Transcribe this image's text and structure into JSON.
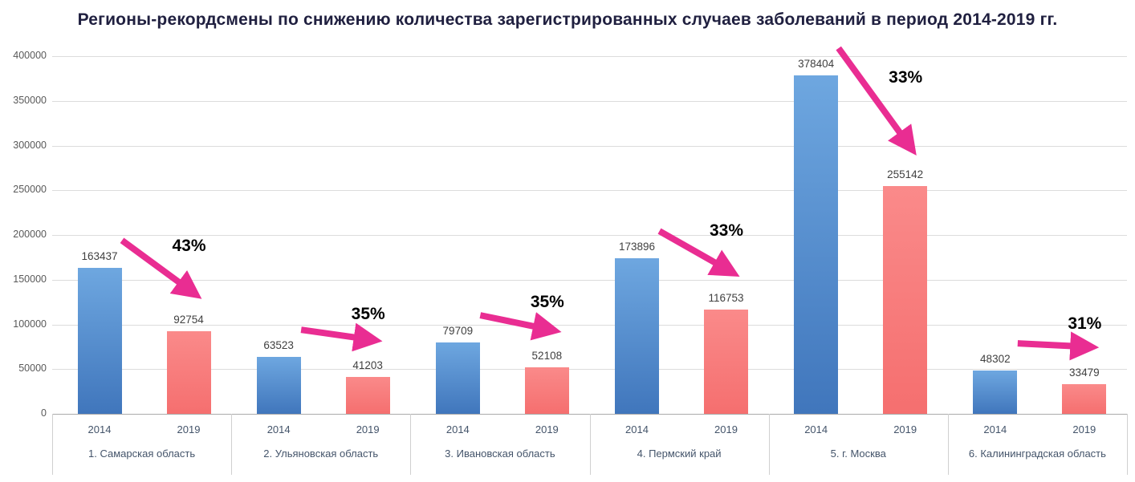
{
  "chart_data": {
    "type": "bar",
    "title": "Регионы-рекордсмены по снижению количества зарегистрированных случаев заболеваний в период 2014-2019 гг.",
    "categories": [
      "1. Самарская область",
      "2. Ульяновская область",
      "3. Ивановская область",
      "4. Пермский край",
      "5. г. Москва",
      "6. Калининградская область"
    ],
    "series": [
      {
        "name": "2014",
        "values": [
          163437,
          63523,
          79709,
          173896,
          378404,
          48302
        ]
      },
      {
        "name": "2019",
        "values": [
          92754,
          41203,
          52108,
          116753,
          255142,
          33479
        ]
      }
    ],
    "decline_labels": [
      "43%",
      "35%",
      "35%",
      "33%",
      "33%",
      "31%"
    ],
    "ylim": [
      0,
      400000
    ],
    "y_tick_step": 50000,
    "y_ticks": [
      0,
      50000,
      100000,
      150000,
      200000,
      250000,
      300000,
      350000,
      400000
    ],
    "grid": true,
    "legend": "none",
    "colors": {
      "bar_2014_top": "#6ea7e0",
      "bar_2014_bottom": "#4076bc",
      "bar_2019_top": "#fa8a8a",
      "bar_2019_bottom": "#f56f6f",
      "arrow": "#e92d92",
      "title": "#202040",
      "value_label": "#404040",
      "axis_label": "#44546a",
      "tick_label": "#595959",
      "gridline": "#dcdcdc",
      "axis_line": "#ababab",
      "separator": "#d0d0d0"
    }
  }
}
